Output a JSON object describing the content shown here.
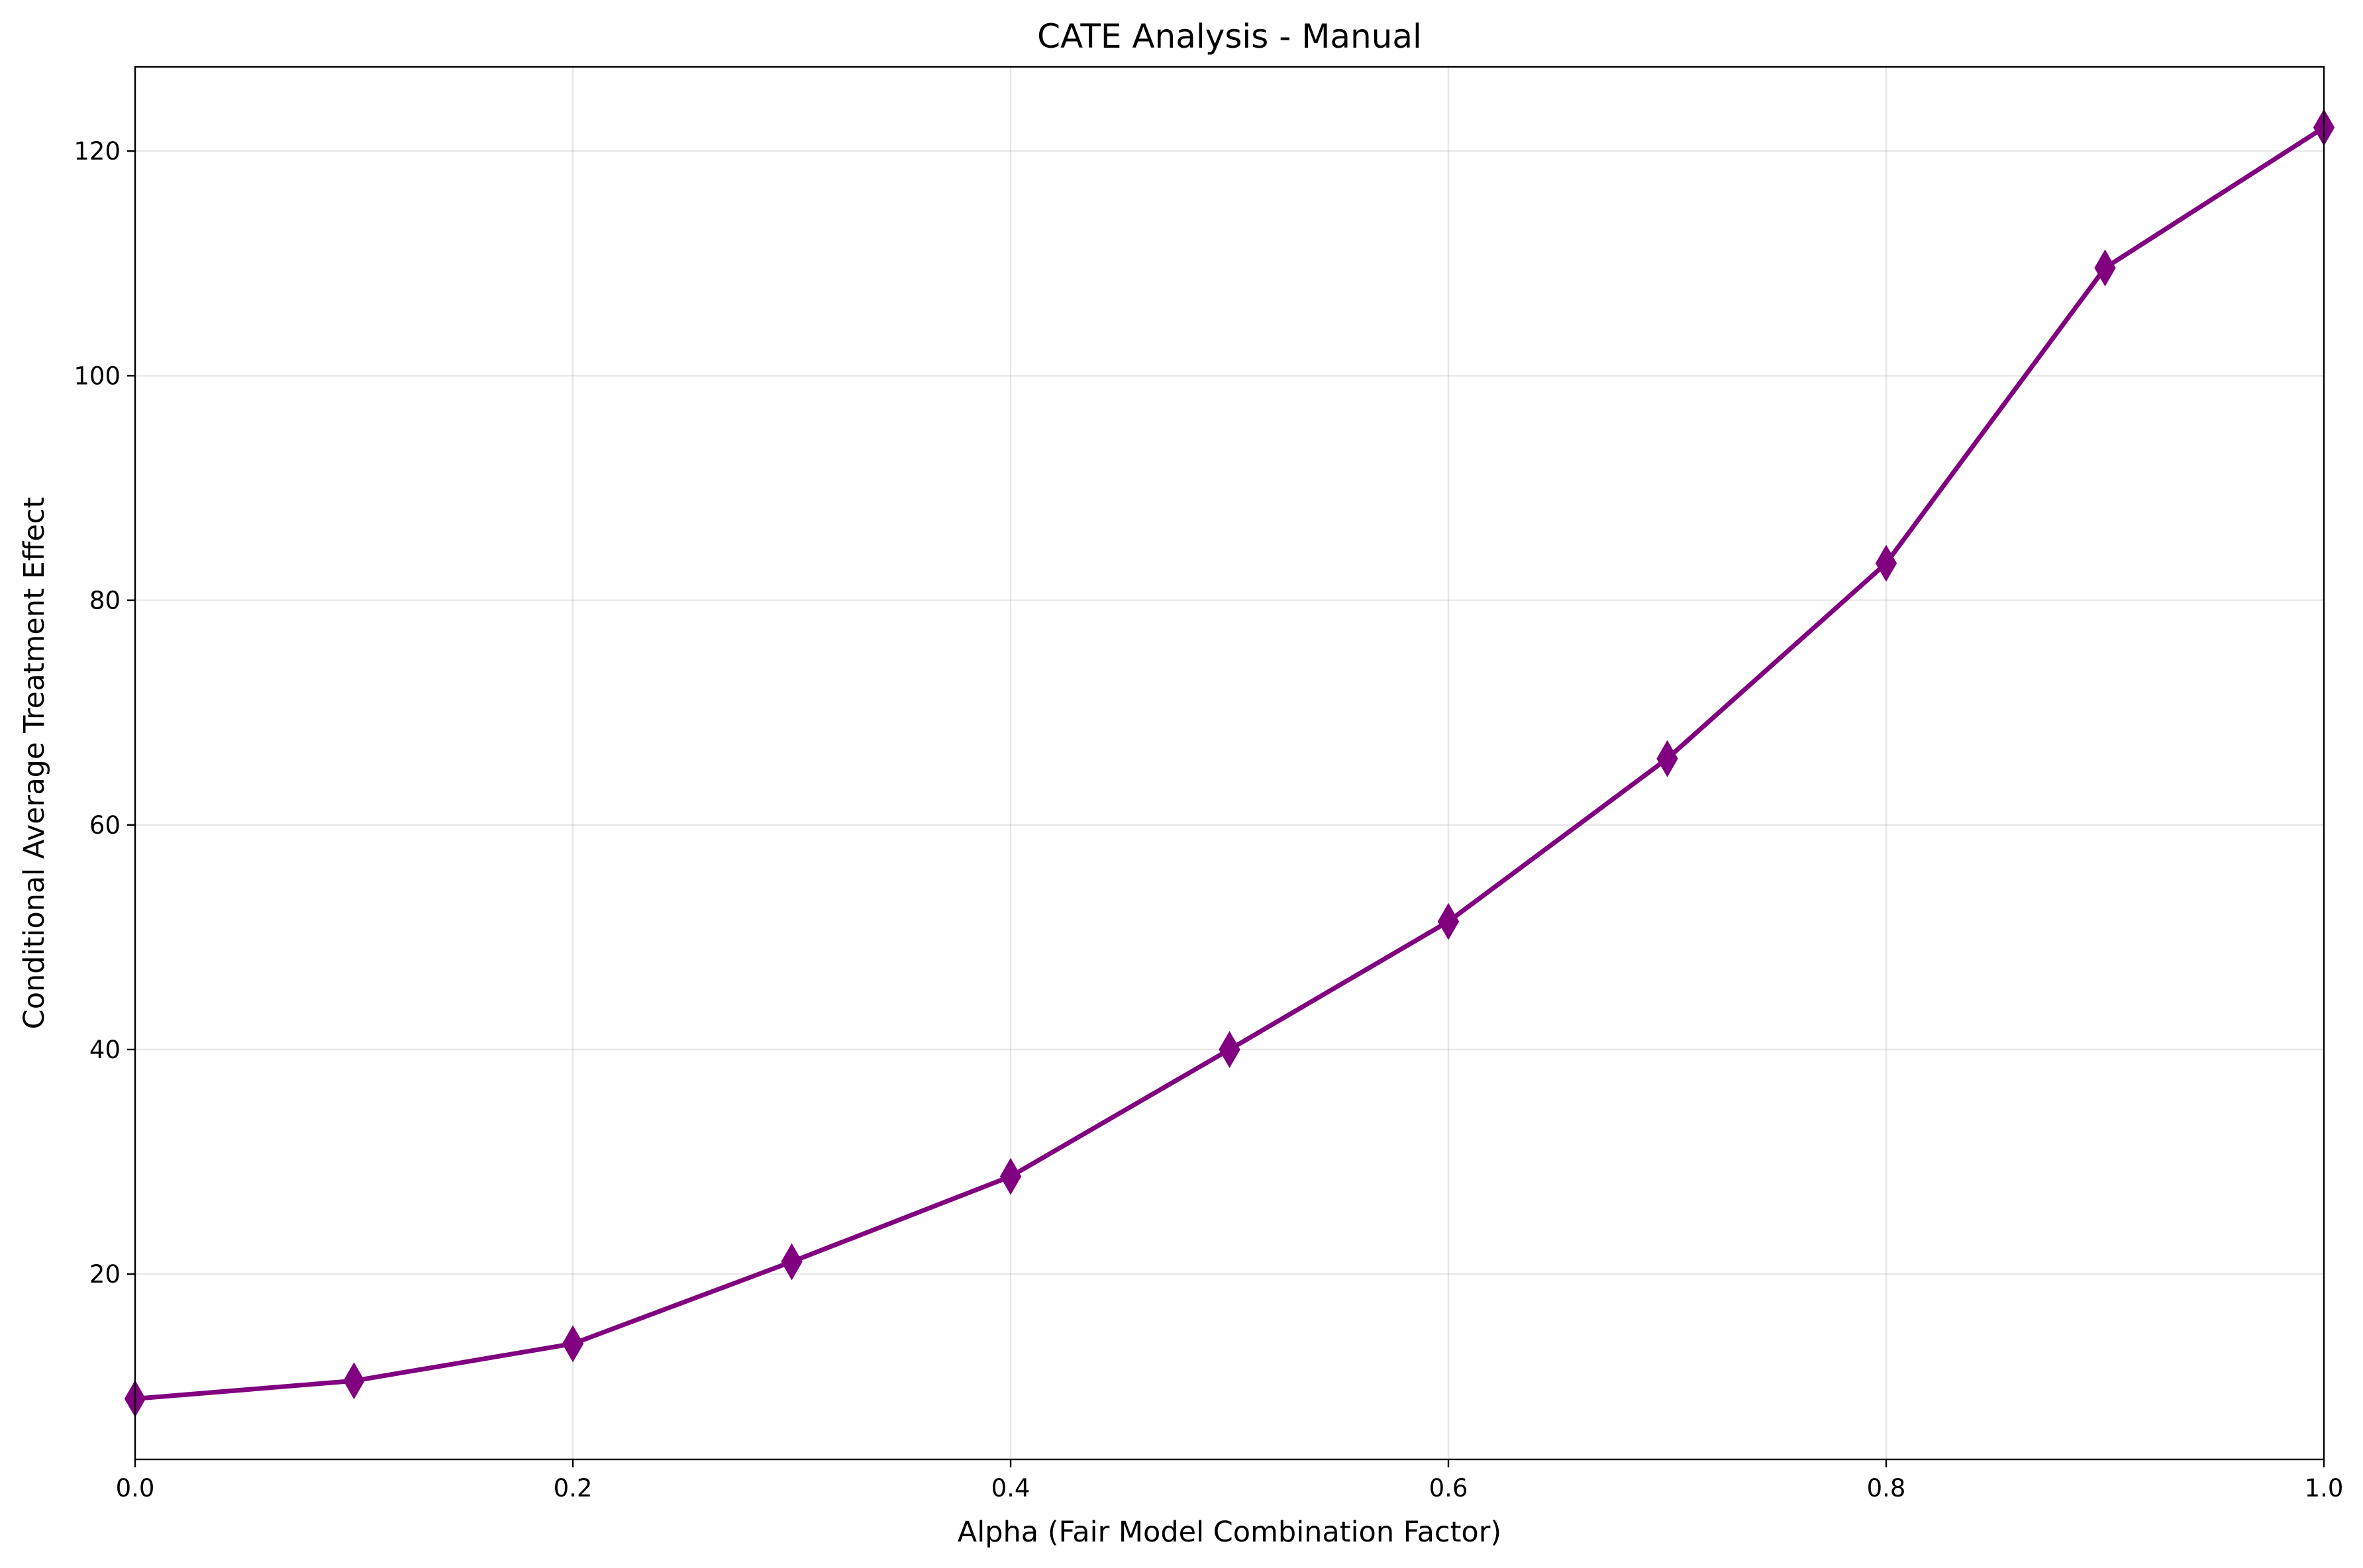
{
  "chart_data": {
    "type": "line",
    "title": "CATE Analysis - Manual",
    "xlabel": "Alpha (Fair Model Combination Factor)",
    "ylabel": "Conditional Average Treatment Effect",
    "xlim": [
      0.0,
      1.0
    ],
    "ylim": [
      3.5,
      127.5
    ],
    "xticks": [
      0.0,
      0.2,
      0.4,
      0.6,
      0.8,
      1.0
    ],
    "xtick_labels": [
      "0.0",
      "0.2",
      "0.4",
      "0.6",
      "0.8",
      "1.0"
    ],
    "yticks": [
      20,
      40,
      60,
      80,
      100,
      120
    ],
    "ytick_labels": [
      "20",
      "40",
      "60",
      "80",
      "100",
      "120"
    ],
    "grid": true,
    "series": [
      {
        "name": "CATE",
        "color": "#800080",
        "marker": "thin-diamond",
        "x": [
          0.0,
          0.1,
          0.2,
          0.3,
          0.4,
          0.5,
          0.6,
          0.7,
          0.8,
          0.9,
          1.0
        ],
        "values": [
          8.9,
          10.5,
          13.8,
          21.1,
          28.7,
          40.0,
          51.4,
          65.9,
          83.3,
          109.6,
          122.1
        ]
      }
    ]
  }
}
